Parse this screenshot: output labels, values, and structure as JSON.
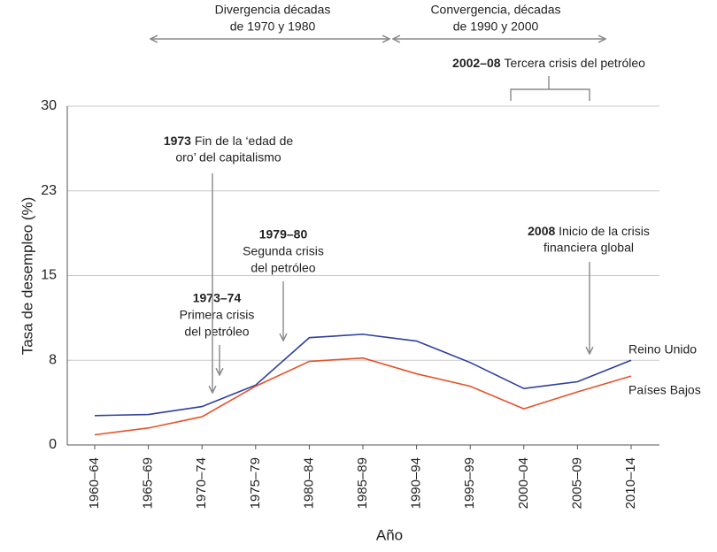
{
  "chart_data": {
    "type": "line",
    "y_label": "Tasa de desempleo (%)",
    "x_label": "Año",
    "categories": [
      "1960–64",
      "1965–69",
      "1970–74",
      "1975–79",
      "1980–84",
      "1985–89",
      "1990–94",
      "1995–99",
      "2000–04",
      "2005–09",
      "2010–14"
    ],
    "ylim": [
      0,
      30
    ],
    "yticks": [
      0,
      {
        "value": 7.5,
        "label": "8"
      },
      15,
      {
        "value": 22.5,
        "label": "23"
      },
      30
    ],
    "grid": true,
    "series": [
      {
        "name": "Reino Unido",
        "color": "#2f3f9e",
        "values": [
          2.6,
          2.7,
          3.4,
          5.3,
          9.5,
          9.8,
          9.2,
          7.3,
          5.0,
          5.6,
          7.5
        ]
      },
      {
        "name": "Países Bajos",
        "color": "#e5532a",
        "values": [
          0.9,
          1.5,
          2.5,
          5.2,
          7.4,
          7.7,
          6.3,
          5.2,
          3.2,
          4.7,
          6.1
        ]
      }
    ],
    "periods": [
      {
        "lines": [
          "Divergencia décadas",
          "de 1970 y 1980"
        ]
      },
      {
        "lines": [
          "Convergencia, décadas",
          "de 1990 y 2000"
        ]
      }
    ],
    "annotations": [
      {
        "bold": "1973",
        "lines": [
          "Fin de la ‘edad de",
          "oro’ del capitalismo"
        ]
      },
      {
        "bold": "1973–74",
        "lines": [
          "Primera crisis",
          "del petróleo"
        ]
      },
      {
        "bold": "1979–80",
        "lines": [
          "Segunda crisis",
          "del petróleo"
        ]
      },
      {
        "bold": "2002–08",
        "lines": [
          "Tercera crisis del petróleo"
        ]
      },
      {
        "bold": "2008",
        "lines": [
          "Inicio de la crisis",
          "financiera global"
        ]
      }
    ]
  }
}
